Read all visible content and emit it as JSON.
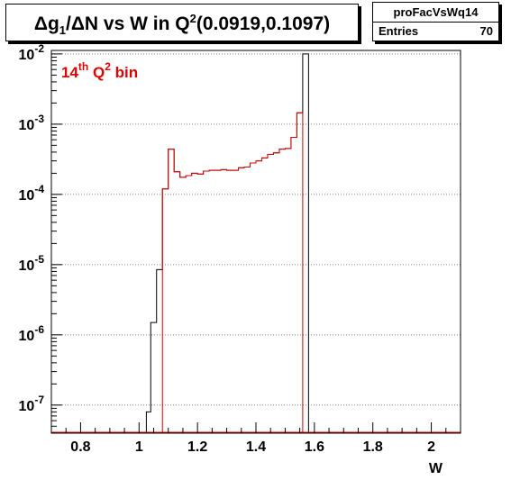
{
  "title": {
    "main": "Δg",
    "sub": "1",
    "mid": "/ΔN vs W in Q",
    "sup": "2",
    "tail": "(0.0919,0.1097)"
  },
  "stats": {
    "name": "proFacVsWq14",
    "entries_label": "Entries",
    "entries_value": "70"
  },
  "annotation": {
    "pre": "14",
    "sup_th": "th",
    "q": " Q",
    "sup_2": "2",
    "post": " bin",
    "color": "#dd0000"
  },
  "colors": {
    "black_hist": "#000000",
    "red_hist": "#dd0000",
    "grid": "#808080"
  },
  "chart_data": {
    "type": "histogram",
    "xlabel": "W",
    "ylabel": "",
    "xlim": [
      0.7,
      2.1
    ],
    "ylim_log10": [
      -7.4,
      -1.95
    ],
    "y_scale": "log",
    "grid": "horizontal dotted",
    "x_ticks": [
      {
        "v": 0.8,
        "label": "0.8"
      },
      {
        "v": 1.0,
        "label": "1"
      },
      {
        "v": 1.2,
        "label": "1.2"
      },
      {
        "v": 1.4,
        "label": "1.4"
      },
      {
        "v": 1.6,
        "label": "1.6"
      },
      {
        "v": 1.8,
        "label": "1.8"
      },
      {
        "v": 2.0,
        "label": "2"
      }
    ],
    "y_ticks": [
      {
        "v": 0.01,
        "base": "10",
        "exp": "-2"
      },
      {
        "v": 0.001,
        "base": "10",
        "exp": "-3"
      },
      {
        "v": 0.0001,
        "base": "10",
        "exp": "-4"
      },
      {
        "v": 1e-05,
        "base": "10",
        "exp": "-5"
      },
      {
        "v": 1e-06,
        "base": "10",
        "exp": "-6"
      },
      {
        "v": 1e-07,
        "base": "10",
        "exp": "-7"
      }
    ],
    "series": [
      {
        "color": "#000000",
        "bins": [
          {
            "x0": 1.025,
            "x1": 1.04,
            "y": 8e-08
          },
          {
            "x0": 1.04,
            "x1": 1.06,
            "y": 1.5e-06
          },
          {
            "x0": 1.06,
            "x1": 1.08,
            "y": 8.5e-06
          },
          {
            "x0": 1.08,
            "x1": 1.1,
            "y": 0.00012
          },
          {
            "x0": 1.1,
            "x1": 1.12,
            "y": 0.00044
          },
          {
            "x0": 1.12,
            "x1": 1.14,
            "y": 0.00021
          },
          {
            "x0": 1.14,
            "x1": 1.16,
            "y": 0.000175
          },
          {
            "x0": 1.16,
            "x1": 1.18,
            "y": 0.000185
          },
          {
            "x0": 1.18,
            "x1": 1.2,
            "y": 0.0002
          },
          {
            "x0": 1.2,
            "x1": 1.22,
            "y": 0.000195
          },
          {
            "x0": 1.22,
            "x1": 1.24,
            "y": 0.000215
          },
          {
            "x0": 1.24,
            "x1": 1.26,
            "y": 0.00022
          },
          {
            "x0": 1.26,
            "x1": 1.28,
            "y": 0.00022
          },
          {
            "x0": 1.28,
            "x1": 1.3,
            "y": 0.000225
          },
          {
            "x0": 1.3,
            "x1": 1.32,
            "y": 0.00022
          },
          {
            "x0": 1.32,
            "x1": 1.34,
            "y": 0.00022
          },
          {
            "x0": 1.34,
            "x1": 1.36,
            "y": 0.00024
          },
          {
            "x0": 1.36,
            "x1": 1.38,
            "y": 0.000245
          },
          {
            "x0": 1.38,
            "x1": 1.4,
            "y": 0.00028
          },
          {
            "x0": 1.4,
            "x1": 1.42,
            "y": 0.0003
          },
          {
            "x0": 1.42,
            "x1": 1.44,
            "y": 0.00033
          },
          {
            "x0": 1.44,
            "x1": 1.46,
            "y": 0.00037
          },
          {
            "x0": 1.46,
            "x1": 1.48,
            "y": 0.00039
          },
          {
            "x0": 1.48,
            "x1": 1.5,
            "y": 0.00044
          },
          {
            "x0": 1.5,
            "x1": 1.52,
            "y": 0.00045
          },
          {
            "x0": 1.52,
            "x1": 1.54,
            "y": 0.00065
          },
          {
            "x0": 1.54,
            "x1": 1.56,
            "y": 0.00145
          },
          {
            "x0": 1.56,
            "x1": 1.58,
            "y": 0.01
          }
        ]
      },
      {
        "color": "#dd0000",
        "bins": [
          {
            "x0": 1.08,
            "x1": 1.1,
            "y": 0.00012
          },
          {
            "x0": 1.1,
            "x1": 1.12,
            "y": 0.00044
          },
          {
            "x0": 1.12,
            "x1": 1.14,
            "y": 0.00021
          },
          {
            "x0": 1.14,
            "x1": 1.16,
            "y": 0.000175
          },
          {
            "x0": 1.16,
            "x1": 1.18,
            "y": 0.000185
          },
          {
            "x0": 1.18,
            "x1": 1.2,
            "y": 0.0002
          },
          {
            "x0": 1.2,
            "x1": 1.22,
            "y": 0.000195
          },
          {
            "x0": 1.22,
            "x1": 1.24,
            "y": 0.000215
          },
          {
            "x0": 1.24,
            "x1": 1.26,
            "y": 0.00022
          },
          {
            "x0": 1.26,
            "x1": 1.28,
            "y": 0.00022
          },
          {
            "x0": 1.28,
            "x1": 1.3,
            "y": 0.000225
          },
          {
            "x0": 1.3,
            "x1": 1.32,
            "y": 0.00022
          },
          {
            "x0": 1.32,
            "x1": 1.34,
            "y": 0.00022
          },
          {
            "x0": 1.34,
            "x1": 1.36,
            "y": 0.00024
          },
          {
            "x0": 1.36,
            "x1": 1.38,
            "y": 0.000245
          },
          {
            "x0": 1.38,
            "x1": 1.4,
            "y": 0.00028
          },
          {
            "x0": 1.4,
            "x1": 1.42,
            "y": 0.0003
          },
          {
            "x0": 1.42,
            "x1": 1.44,
            "y": 0.00033
          },
          {
            "x0": 1.44,
            "x1": 1.46,
            "y": 0.00037
          },
          {
            "x0": 1.46,
            "x1": 1.48,
            "y": 0.00039
          },
          {
            "x0": 1.48,
            "x1": 1.5,
            "y": 0.00044
          },
          {
            "x0": 1.5,
            "x1": 1.52,
            "y": 0.00045
          },
          {
            "x0": 1.52,
            "x1": 1.54,
            "y": 0.00065
          },
          {
            "x0": 1.54,
            "x1": 1.56,
            "y": 0.00145
          }
        ]
      }
    ]
  }
}
